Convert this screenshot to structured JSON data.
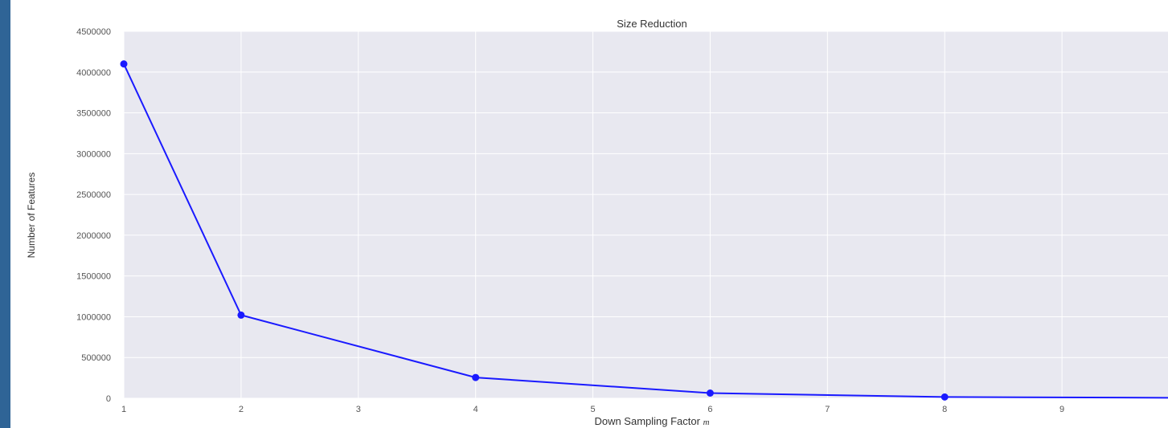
{
  "chart_data": {
    "type": "line",
    "title": "Size Reduction",
    "xlabel": "Down Sampling Factor",
    "xlabel_var": "m",
    "ylabel": "Number of Features",
    "x": [
      1,
      2,
      4,
      6,
      8,
      10
    ],
    "series": [
      {
        "values": [
          4100000,
          1020000,
          255000,
          64000,
          16000,
          6000
        ]
      }
    ],
    "xlim": [
      1,
      10
    ],
    "ylim": [
      0,
      4500000
    ],
    "xticks": [
      "1",
      "2",
      "3",
      "4",
      "5",
      "6",
      "7",
      "8",
      "9"
    ],
    "yticks": [
      "0",
      "500000",
      "1000000",
      "1500000",
      "2000000",
      "2500000",
      "3000000",
      "3500000",
      "4000000",
      "4500000"
    ],
    "grid": true,
    "colors": {
      "line": "#1a1aff",
      "plot_bg": "#e8e8f0",
      "grid": "#ffffff",
      "left_bar": "#2f6496"
    }
  }
}
